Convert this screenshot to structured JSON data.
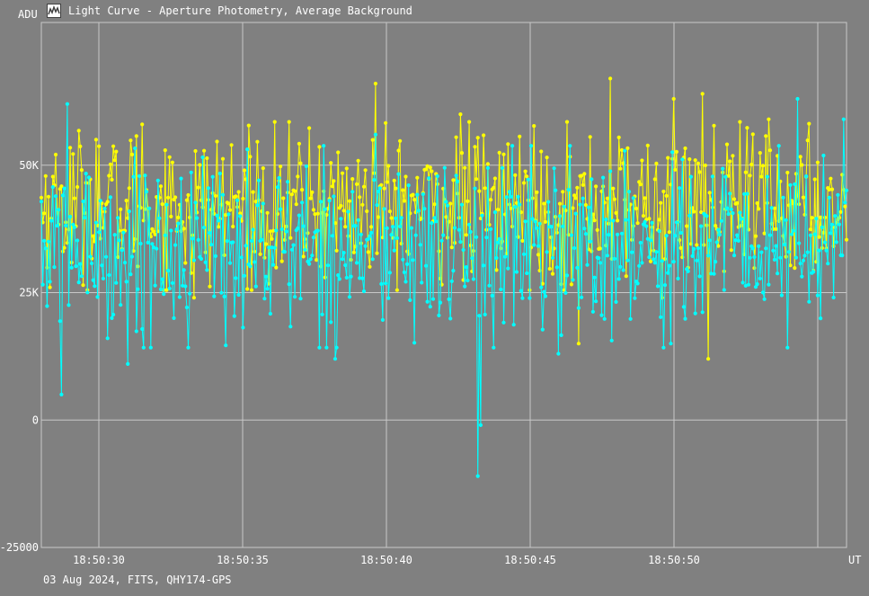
{
  "window": {
    "title": "Light Curve - Aperture Photometry, Average Background",
    "icon": "light-curve-app-icon"
  },
  "footer": {
    "info": "03 Aug 2024, FITS, QHY174-GPS"
  },
  "chart_data": {
    "type": "line",
    "title": "Light Curve - Aperture Photometry, Average Background",
    "ylabel": "ADU",
    "xlabel": "UT",
    "ylim": [
      -25000,
      78000
    ],
    "xlim": [
      28.0,
      56.0
    ],
    "x_unit": "seconds after 18:50:00",
    "y_ticks": [
      {
        "value": 50000,
        "label": "50K"
      },
      {
        "value": 25000,
        "label": "25K"
      },
      {
        "value": 0,
        "label": "0"
      },
      {
        "value": -25000,
        "label": "-25000"
      }
    ],
    "x_ticks": [
      {
        "value": 30,
        "label": "18:50:30"
      },
      {
        "value": 35,
        "label": "18:50:35"
      },
      {
        "value": 40,
        "label": "18:50:40"
      },
      {
        "value": 45,
        "label": "18:50:45"
      },
      {
        "value": 50,
        "label": "18:50:50"
      },
      {
        "value": 55,
        "label": ""
      }
    ],
    "grid": true,
    "series": [
      {
        "color": "#ffff00",
        "x_start": 28.0,
        "x_end": 56.0,
        "count": 560,
        "mean": 42000,
        "spread": 7500,
        "peaks": [
          {
            "x": 29.9,
            "y": 55000
          },
          {
            "x": 31.5,
            "y": 58000
          },
          {
            "x": 39.6,
            "y": 66000
          },
          {
            "x": 42.6,
            "y": 60000
          },
          {
            "x": 47.8,
            "y": 67000
          },
          {
            "x": 50.0,
            "y": 63000
          },
          {
            "x": 51.0,
            "y": 64000
          },
          {
            "x": 51.2,
            "y": 65000
          },
          {
            "x": 53.3,
            "y": 59000
          }
        ],
        "troughs": [
          {
            "x": 46.7,
            "y": 15000
          },
          {
            "x": 51.2,
            "y": 12000
          },
          {
            "x": 49.6,
            "y": 24000
          },
          {
            "x": 33.3,
            "y": 24000
          }
        ]
      },
      {
        "color": "#00ffff",
        "x_start": 28.0,
        "x_end": 56.0,
        "count": 560,
        "mean": 34000,
        "spread": 9000,
        "peaks": [
          {
            "x": 28.9,
            "y": 62000
          },
          {
            "x": 54.3,
            "y": 63000
          },
          {
            "x": 55.9,
            "y": 59000
          },
          {
            "x": 39.6,
            "y": 56000
          }
        ],
        "troughs": [
          {
            "x": 28.7,
            "y": 5000
          },
          {
            "x": 43.2,
            "y": -11000
          },
          {
            "x": 43.3,
            "y": -1000
          },
          {
            "x": 31.0,
            "y": 11000
          },
          {
            "x": 38.2,
            "y": 12000
          },
          {
            "x": 46.0,
            "y": 13000
          },
          {
            "x": 49.9,
            "y": 15000
          }
        ]
      }
    ]
  }
}
